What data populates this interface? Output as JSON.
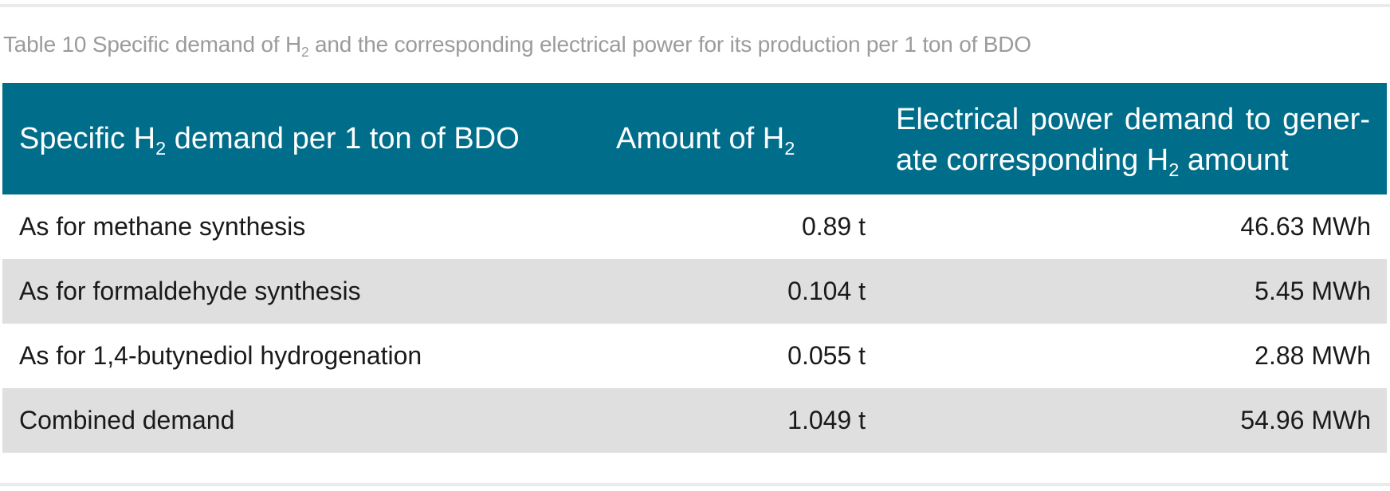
{
  "caption": {
    "prefix": "Table 10 Specific demand of H",
    "sub": "2",
    "suffix": " and the corresponding electrical power for its production per 1 ton of BDO"
  },
  "header": {
    "col1": {
      "prefix": "Specific H",
      "sub": "2",
      "suffix": " demand per 1 ton of BDO"
    },
    "col2": {
      "prefix": "Amount of H",
      "sub": "2",
      "suffix": ""
    },
    "col3": {
      "prefix": "Electrical power demand to gener-ate corresponding H",
      "sub": "2",
      "suffix": " amount"
    }
  },
  "rows": [
    {
      "label": "As for methane synthesis",
      "amount": "0.89 t",
      "power": "46.63 MWh"
    },
    {
      "label": "As for formaldehyde synthesis",
      "amount": "0.104 t",
      "power": "5.45 MWh"
    },
    {
      "label": "As for 1,4-butynediol hydrogenation",
      "amount": "0.055 t",
      "power": "2.88 MWh"
    },
    {
      "label": "Combined demand",
      "amount": "1.049 t",
      "power": "54.96 MWh"
    }
  ],
  "colors": {
    "header_bg": "#006e8a",
    "stripe_bg": "#dfdfe0",
    "caption_text": "#9b9b9b"
  }
}
